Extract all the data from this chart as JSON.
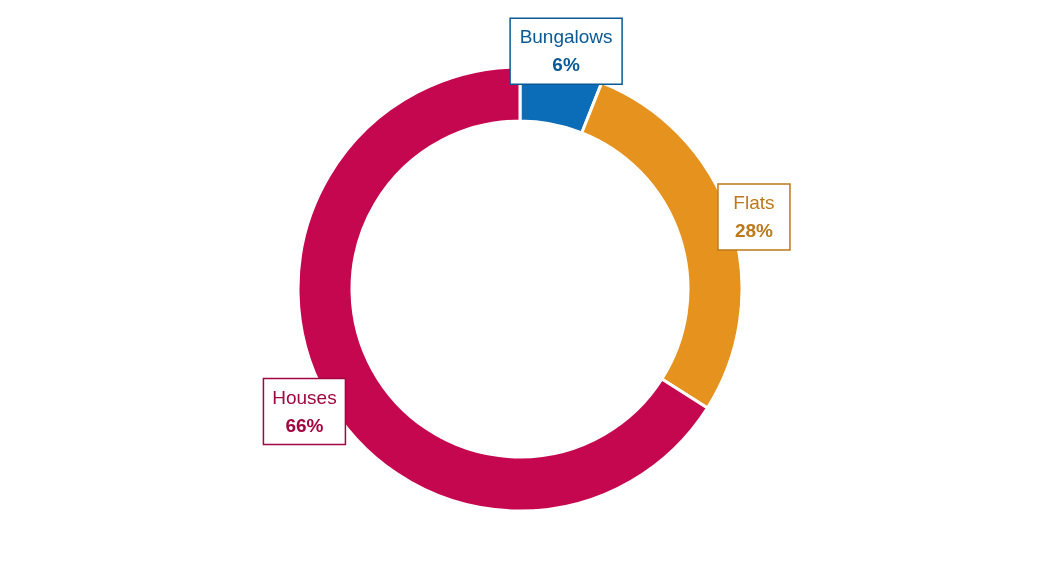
{
  "chart_data": {
    "type": "donut",
    "categories": [
      "Bungalows",
      "Flats",
      "Houses"
    ],
    "values": [
      6,
      28,
      66
    ],
    "colors": [
      "#0b6db7",
      "#e6921e",
      "#c5074f"
    ],
    "value_labels": [
      "6%",
      "28%",
      "66%"
    ]
  }
}
